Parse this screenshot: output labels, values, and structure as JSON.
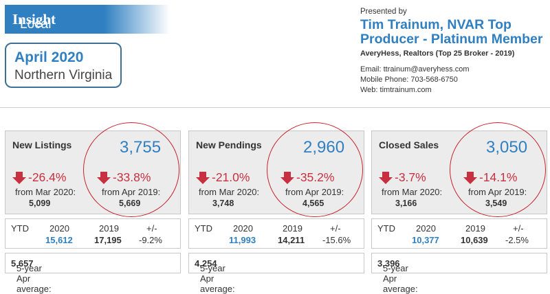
{
  "header": {
    "banner_plain": "Local Market",
    "banner_bold": "Insight",
    "date": "April 2020",
    "region": "Northern Virginia"
  },
  "agent": {
    "presented_by": "Presented by",
    "name_line1": "Tim Trainum, NVAR Top",
    "name_line2": "Producer - Platinum Member",
    "broker": "AveryHess, Realtors (Top 25 Broker - 2019)",
    "email": "Email: ttrainum@averyhess.com",
    "phone": "Mobile Phone: 703-568-6750",
    "web": "Web: timtrainum.com"
  },
  "cards": [
    {
      "label": "New Listings",
      "value": "3,755",
      "mom_pct": "-26.4%",
      "mom_label": "from Mar 2020:",
      "mom_value": "5,099",
      "yoy_pct": "-33.8%",
      "yoy_label": "from Apr 2019:",
      "yoy_value": "5,669",
      "ytd_label": "YTD",
      "ytd_h2020": "2020",
      "ytd_h2019": "2019",
      "ytd_hdiff": "+/-",
      "ytd_2020": "15,612",
      "ytd_2019": "17,195",
      "ytd_diff": "-9.2%",
      "avg_label": "5-year Apr average:",
      "avg_value": "5,657"
    },
    {
      "label": "New Pendings",
      "value": "2,960",
      "mom_pct": "-21.0%",
      "mom_label": "from Mar 2020:",
      "mom_value": "3,748",
      "yoy_pct": "-35.2%",
      "yoy_label": "from Apr 2019:",
      "yoy_value": "4,565",
      "ytd_label": "YTD",
      "ytd_h2020": "2020",
      "ytd_h2019": "2019",
      "ytd_hdiff": "+/-",
      "ytd_2020": "11,993",
      "ytd_2019": "14,211",
      "ytd_diff": "-15.6%",
      "avg_label": "5-year Apr average:",
      "avg_value": "4,254"
    },
    {
      "label": "Closed Sales",
      "value": "3,050",
      "mom_pct": "-3.7%",
      "mom_label": "from Mar 2020:",
      "mom_value": "3,166",
      "yoy_pct": "-14.1%",
      "yoy_label": "from Apr 2019:",
      "yoy_value": "3,549",
      "ytd_label": "YTD",
      "ytd_h2020": "2020",
      "ytd_h2019": "2019",
      "ytd_hdiff": "+/-",
      "ytd_2020": "10,377",
      "ytd_2019": "10,639",
      "ytd_diff": "-2.5%",
      "avg_label": "5-year Apr average:",
      "avg_value": "3,396"
    }
  ],
  "colors": {
    "accent": "#2f7fc1",
    "negative": "#c63040",
    "circle": "#c8222c"
  },
  "icons": {
    "change": "down-arrow-icon"
  }
}
